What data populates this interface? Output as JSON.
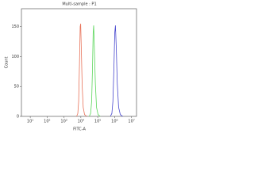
{
  "chart_data": {
    "type": "line",
    "title": "Multi-sample : P1",
    "xlabel": "FITC-A",
    "ylabel": "Count",
    "xscale": "log",
    "xlim": [
      3,
      20000000
    ],
    "ylim": [
      0,
      180
    ],
    "xticks": [
      {
        "value": 10,
        "label": "10¹"
      },
      {
        "value": 100,
        "label": "10²"
      },
      {
        "value": 1000,
        "label": "10³"
      },
      {
        "value": 10000,
        "label": "10⁴"
      },
      {
        "value": 100000,
        "label": "10⁵"
      },
      {
        "value": 1000000,
        "label": "10⁶"
      },
      {
        "value": 10000000,
        "label": "10⁷"
      }
    ],
    "yticks": [
      0,
      50,
      100,
      150
    ],
    "series": [
      {
        "color": "#e8735a",
        "x": [
          5623,
          6607,
          7413,
          8318,
          9120,
          9772,
          10715,
          12023,
          13804,
          16596,
          22387
        ],
        "values": [
          0,
          5,
          25,
          90,
          150,
          155,
          110,
          50,
          15,
          3,
          0
        ]
      },
      {
        "color": "#5bd65b",
        "x": [
          31623,
          38019,
          43652,
          48978,
          53703,
          57544,
          63096,
          72444,
          85114,
          104713,
          141254
        ],
        "values": [
          0,
          5,
          25,
          80,
          140,
          152,
          115,
          55,
          15,
          3,
          0
        ]
      },
      {
        "color": "#4a4acf",
        "x": [
          562341,
          691831,
          794328,
          912011,
          1023293,
          1122018,
          1258925,
          1445440,
          1737801,
          2187762,
          3019952
        ],
        "values": [
          0,
          5,
          25,
          80,
          140,
          152,
          115,
          55,
          15,
          3,
          0
        ]
      }
    ]
  }
}
